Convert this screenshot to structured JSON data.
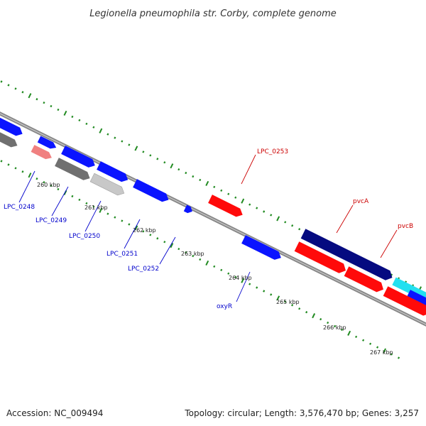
{
  "title": "Legionella pneumophila str. Corby, complete genome",
  "footer": {
    "accession": "Accession: NC_009494",
    "stats": "Topology: circular; Length: 3,576,470 bp; Genes: 3,257"
  },
  "colors": {
    "plus_label": "#cc0000",
    "minus_label": "#0000cc",
    "backbone": "#888888",
    "ticks": "#228b22"
  },
  "scale_labels": [
    "260 kbp",
    "261 kbp",
    "262 kbp",
    "263 kbp",
    "264 kbp",
    "265 kbp",
    "266 kbp",
    "267 kbp"
  ],
  "gene_labels": [
    {
      "text": "LPC_0253",
      "strand": "plus"
    },
    {
      "text": "pvcA",
      "strand": "plus"
    },
    {
      "text": "pvcB",
      "strand": "plus"
    },
    {
      "text": "LPC_0248",
      "strand": "minus"
    },
    {
      "text": "LPC_0249",
      "strand": "minus"
    },
    {
      "text": "LPC_0250",
      "strand": "minus"
    },
    {
      "text": "LPC_0251",
      "strand": "minus"
    },
    {
      "text": "LPC_0252",
      "strand": "minus"
    },
    {
      "text": "oxyR",
      "strand": "minus"
    }
  ]
}
